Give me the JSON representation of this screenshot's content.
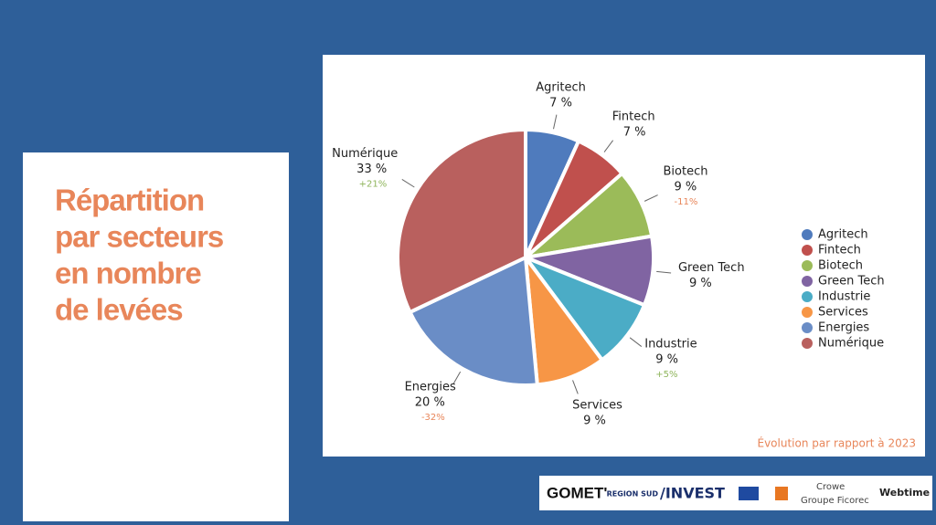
{
  "slide_title": [
    "Répartition",
    "par secteurs",
    "en nombre",
    "de levées"
  ],
  "chart_data": {
    "type": "pie",
    "categories": [
      "Agritech",
      "Fintech",
      "Biotech",
      "Green Tech",
      "Industrie",
      "Services",
      "Energies",
      "Numérique"
    ],
    "values": [
      7,
      7,
      9,
      9,
      9,
      9,
      20,
      33
    ],
    "value_labels": [
      "7 %",
      "7 %",
      "9 %",
      "9 %",
      "9 %",
      "9 %",
      "20 %",
      "33 %"
    ],
    "colors": [
      "#4f7bbd",
      "#c0504d",
      "#9bbb59",
      "#8064a2",
      "#4bacc6",
      "#f79646",
      "#6a8dc6",
      "#b9605e"
    ],
    "changes": [
      null,
      null,
      -11,
      null,
      5,
      null,
      -32,
      21
    ],
    "change_labels": [
      null,
      null,
      "-11%",
      null,
      "+5%",
      null,
      "-32%",
      "+21%"
    ],
    "legend": "right",
    "note": "Évolution par rapport à 2023"
  },
  "logos": [
    "GOMET'",
    "REGION SUD",
    "/INVEST",
    "Crowe",
    "Groupe Ficorec",
    "Webtime"
  ]
}
